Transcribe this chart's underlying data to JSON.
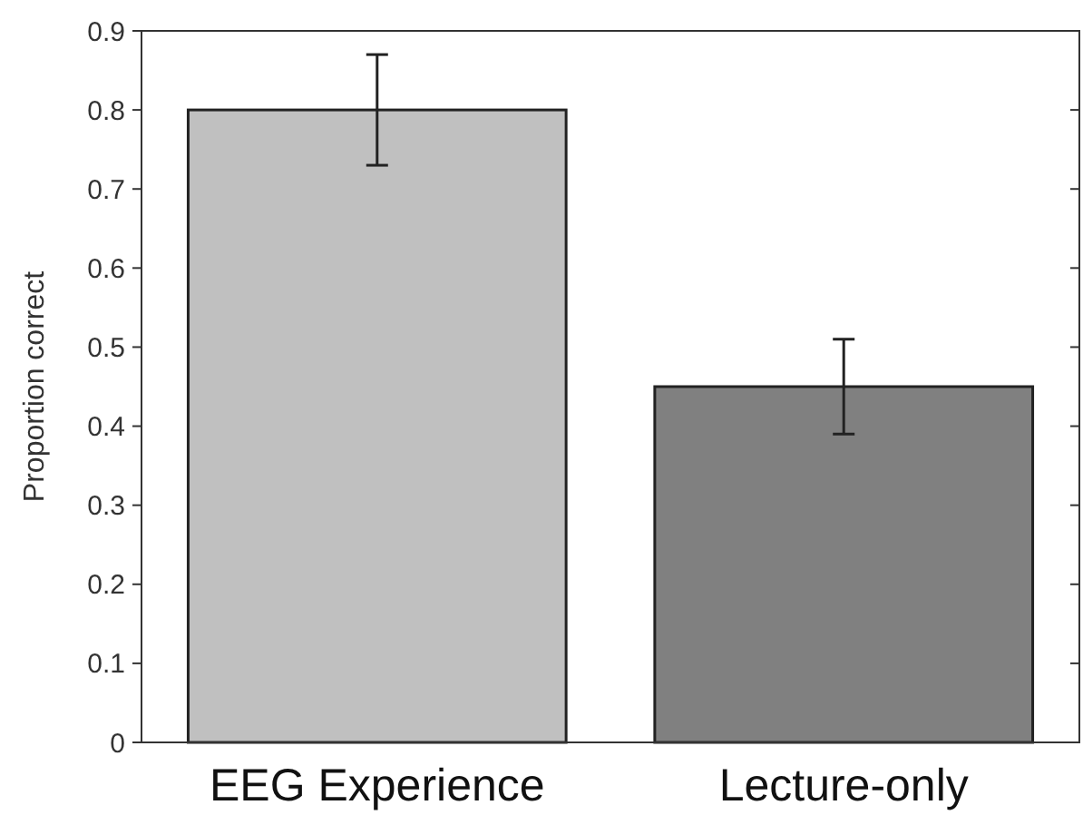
{
  "chart_data": {
    "type": "bar",
    "ylabel": "Proportion correct",
    "categories": [
      "EEG Experience",
      "Lecture-only"
    ],
    "values": [
      0.8,
      0.45
    ],
    "colors": [
      "#c0c0c0",
      "#808080"
    ],
    "errors": [
      0.07,
      0.06
    ],
    "ylim": [
      0,
      0.9
    ],
    "yticks": [
      0,
      0.1,
      0.2,
      0.3,
      0.4,
      0.5,
      0.6,
      0.7,
      0.8,
      0.9
    ],
    "grid": false
  }
}
